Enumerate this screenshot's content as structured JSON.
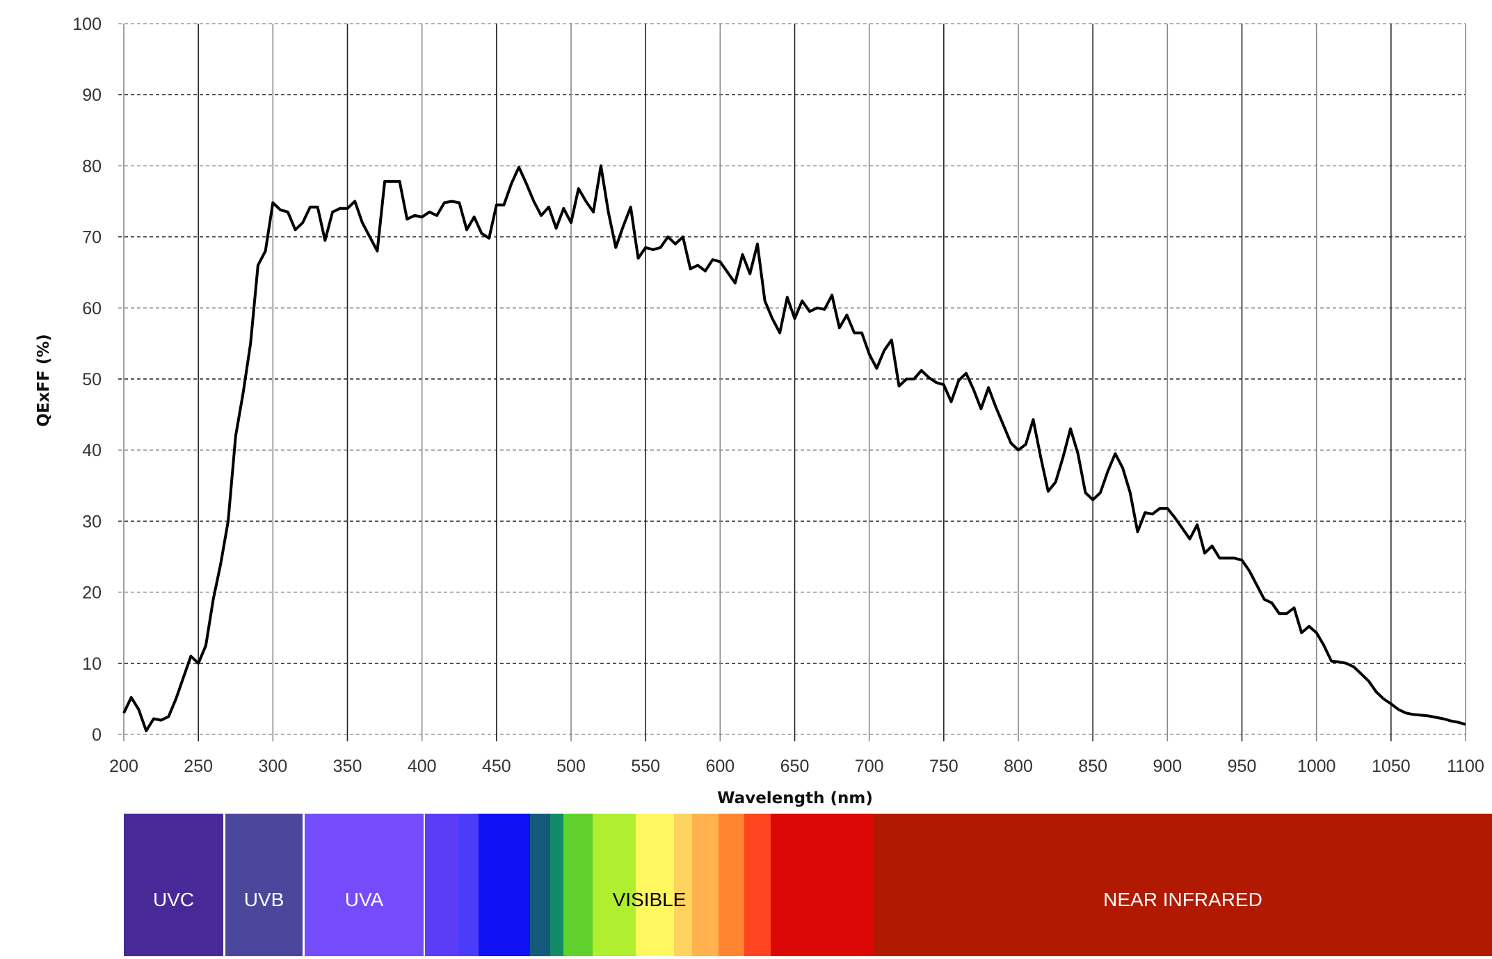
{
  "chart_data": {
    "type": "line",
    "title": "",
    "xlabel": "Wavelength (nm)",
    "ylabel": "QExFF (%)",
    "xlim": [
      200,
      1100
    ],
    "ylim": [
      0,
      100
    ],
    "grid": true,
    "x_ticks": [
      "200",
      "250",
      "300",
      "350",
      "400",
      "450",
      "500",
      "550",
      "600",
      "650",
      "700",
      "750",
      "800",
      "850",
      "900",
      "950",
      "1000",
      "1050",
      "1100"
    ],
    "y_ticks": [
      "0",
      "10",
      "20",
      "30",
      "40",
      "50",
      "60",
      "70",
      "80",
      "90",
      "100"
    ],
    "line_color": "#000000",
    "series": [
      {
        "x": [
          200,
          205,
          210,
          215,
          220,
          225,
          230,
          235,
          240,
          245,
          250,
          255,
          260,
          265,
          270,
          275,
          280,
          285,
          290,
          295,
          300,
          305,
          310,
          315,
          320,
          325,
          330,
          335,
          340,
          345,
          350,
          355,
          360,
          365,
          370,
          375,
          380,
          385,
          390,
          395,
          400,
          405,
          410,
          415,
          420,
          425,
          430,
          435,
          440,
          445,
          450,
          455,
          460,
          465,
          470,
          475,
          480,
          485,
          490,
          495,
          500,
          505,
          510,
          515,
          520,
          525,
          530,
          535,
          540,
          545,
          550,
          555,
          560,
          565,
          570,
          575,
          580,
          585,
          590,
          595,
          600,
          605,
          610,
          615,
          620,
          625,
          630,
          635,
          640,
          645,
          650,
          655,
          660,
          665,
          670,
          675,
          680,
          685,
          690,
          695,
          700,
          705,
          710,
          715,
          720,
          725,
          730,
          735,
          740,
          745,
          750,
          755,
          760,
          765,
          770,
          775,
          780,
          785,
          790,
          795,
          800,
          805,
          810,
          815,
          820,
          825,
          830,
          835,
          840,
          845,
          850,
          855,
          860,
          865,
          870,
          875,
          880,
          885,
          890,
          895,
          900,
          905,
          910,
          915,
          920,
          925,
          930,
          935,
          940,
          945,
          950,
          955,
          960,
          965,
          970,
          975,
          980,
          985,
          990,
          995,
          1000,
          1005,
          1010,
          1015,
          1020,
          1025,
          1030,
          1035,
          1040,
          1045,
          1050,
          1055,
          1060,
          1065,
          1070,
          1075,
          1080,
          1085,
          1090,
          1095,
          1100
        ],
        "y": [
          3,
          5.2,
          3.5,
          0.5,
          2.2,
          2,
          2.5,
          5,
          8,
          11,
          10,
          12.5,
          19,
          24,
          30,
          42,
          48,
          55,
          66,
          68,
          74.8,
          73.8,
          73.5,
          71,
          72,
          74.2,
          74.2,
          69.5,
          73.5,
          74,
          74,
          75,
          72,
          70,
          68,
          77.8,
          77.8,
          77.8,
          72.5,
          73,
          72.8,
          73.5,
          73,
          74.8,
          75,
          74.8,
          71,
          72.8,
          70.5,
          69.8,
          74.5,
          74.5,
          77.5,
          79.8,
          77.5,
          75,
          73,
          74.2,
          71.2,
          74,
          72,
          76.8,
          75,
          73.5,
          80,
          73.5,
          68.5,
          71.5,
          74.2,
          67,
          68.5,
          68.2,
          68.5,
          70,
          69,
          70,
          65.5,
          66,
          65.2,
          66.8,
          66.5,
          65,
          63.5,
          67.5,
          64.8,
          69,
          61,
          58.5,
          56.5,
          61.5,
          58.5,
          61,
          59.5,
          60,
          59.8,
          61.8,
          57.2,
          59,
          56.5,
          56.5,
          53.5,
          51.5,
          54,
          55.5,
          49,
          50,
          50,
          51.2,
          50.2,
          49.5,
          49.2,
          46.8,
          49.8,
          50.8,
          48.5,
          45.8,
          48.8,
          46,
          43.5,
          41,
          40,
          40.8,
          44.3,
          39,
          34.2,
          35.5,
          39,
          43,
          39.5,
          34,
          33,
          34,
          37,
          39.5,
          37.5,
          34,
          28.5,
          31.2,
          31,
          31.8,
          31.8,
          30.5,
          29,
          27.5,
          29.5,
          25.5,
          26.5,
          24.8,
          24.8,
          24.8,
          24.5,
          23,
          21,
          19,
          18.5,
          17,
          17,
          17.8,
          14.3,
          15.2,
          14.3,
          12.5,
          10.3,
          10.2,
          10,
          9.5,
          8.5,
          7.5,
          6,
          5,
          4.3,
          3.5,
          3,
          2.8,
          2.7,
          2.6,
          2.4,
          2.2,
          1.9,
          1.7,
          1.4
        ]
      }
    ]
  },
  "spectrum": {
    "bands": [
      {
        "label": "UVC",
        "color": "#472a98",
        "text_color": "#ffffff"
      },
      {
        "label": "UVB",
        "color": "#4b479c",
        "text_color": "#ffffff"
      },
      {
        "label": "UVA",
        "color": "#744cfb",
        "text_color": "#ffffff"
      },
      {
        "label": "VISIBLE",
        "color": "#ffffff",
        "text_color": "#000000"
      },
      {
        "label": "NEAR INFRARED",
        "color": "#b11a00",
        "text_color": "#ffffff"
      }
    ],
    "visible_colors": [
      "#5b3cf7",
      "#4a3cf8",
      "#1010f5",
      "#145a7c",
      "#128a6a",
      "#5fd02c",
      "#b0ee30",
      "#fff860",
      "#ffd45e",
      "#ffb24e",
      "#ff8430",
      "#ff4420",
      "#dc0707"
    ]
  }
}
